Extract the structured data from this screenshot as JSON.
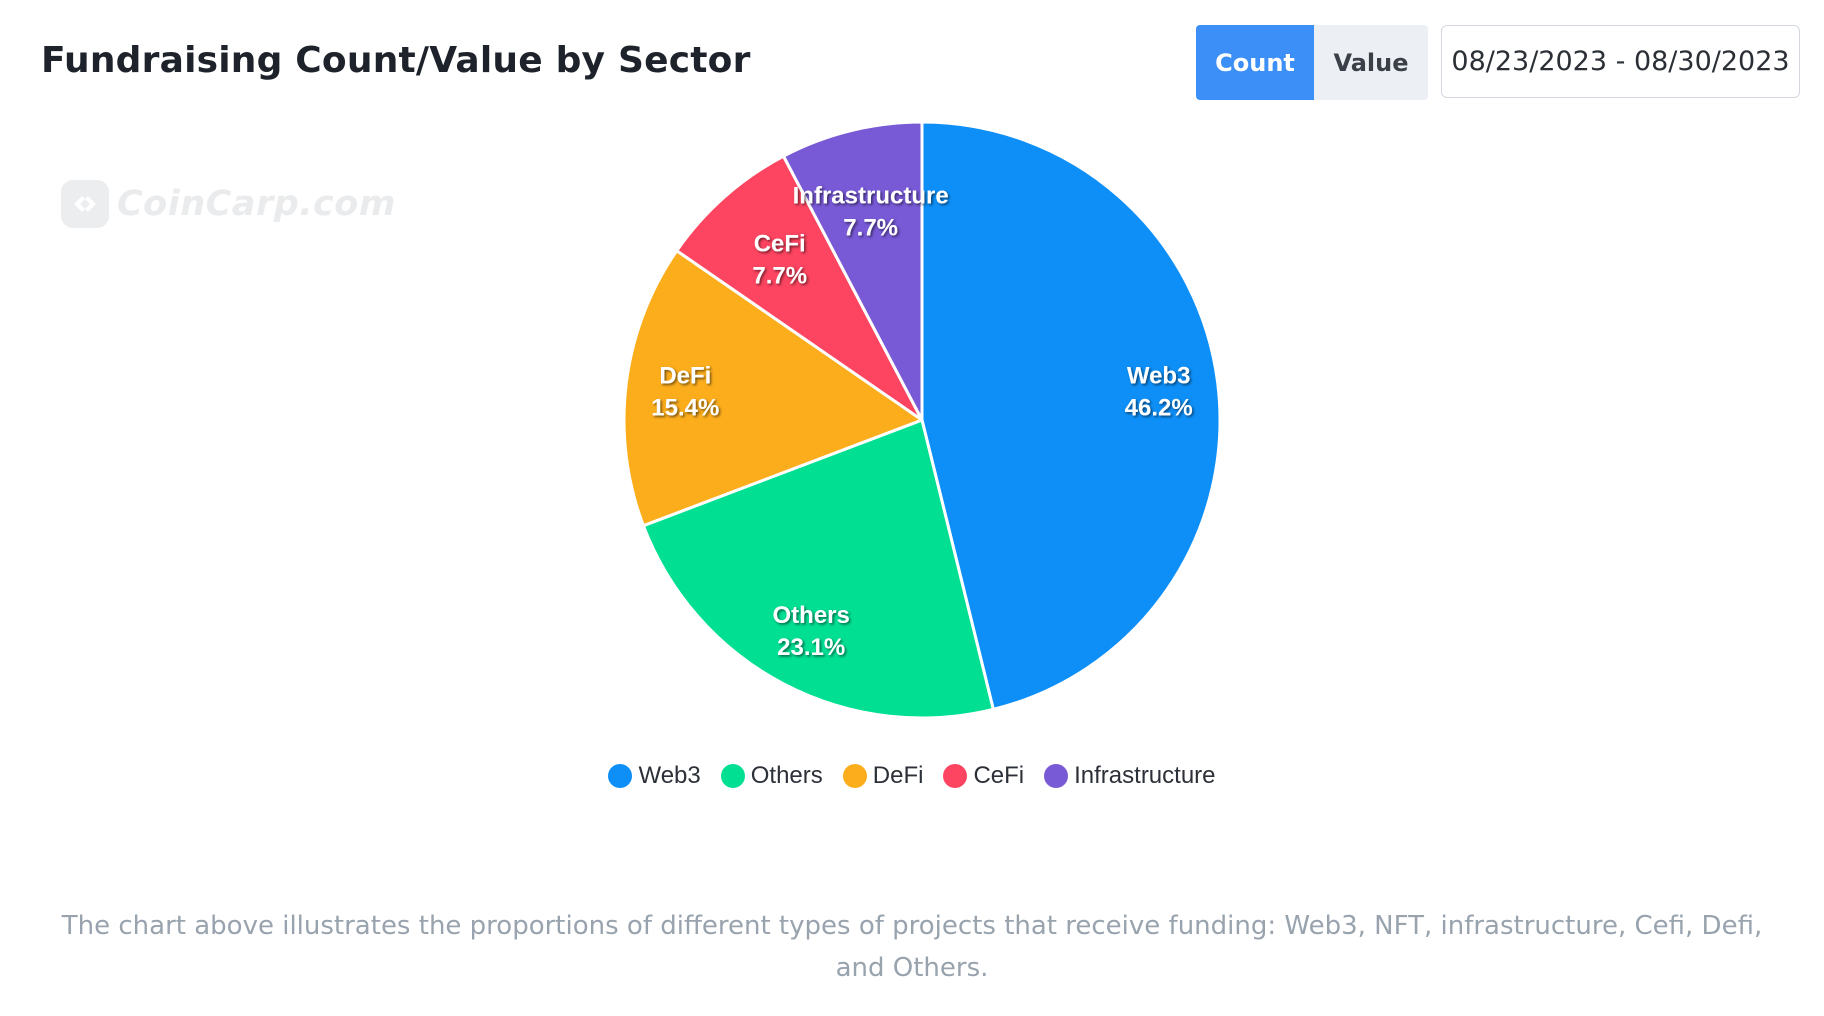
{
  "header": {
    "title": "Fundraising Count/Value by Sector",
    "toggle": {
      "active": "Count",
      "inactive": "Value"
    },
    "date_range": "08/23/2023 - 08/30/2023"
  },
  "watermark": {
    "text": "CoinCarp.com",
    "logo_icon": "coincarp-logo-icon"
  },
  "chart_data": {
    "type": "pie",
    "categories": [
      "Web3",
      "Others",
      "DeFi",
      "CeFi",
      "Infrastructure"
    ],
    "values": [
      46.2,
      23.1,
      15.4,
      7.7,
      7.7
    ],
    "labels": [
      "46.2%",
      "23.1%",
      "15.4%",
      "7.7%",
      "7.7%"
    ],
    "colors": [
      "#0d8ff7",
      "#01df93",
      "#fcad1c",
      "#fd4460",
      "#7859d6"
    ],
    "start_angle": "12 o'clock",
    "direction": "clockwise",
    "legend": "bottom-center",
    "title": "Fundraising Count/Value by Sector"
  },
  "caption": "The chart above illustrates the proportions of different types of projects that receive funding: Web3, NFT, infrastructure, Cefi, Defi, and Others."
}
